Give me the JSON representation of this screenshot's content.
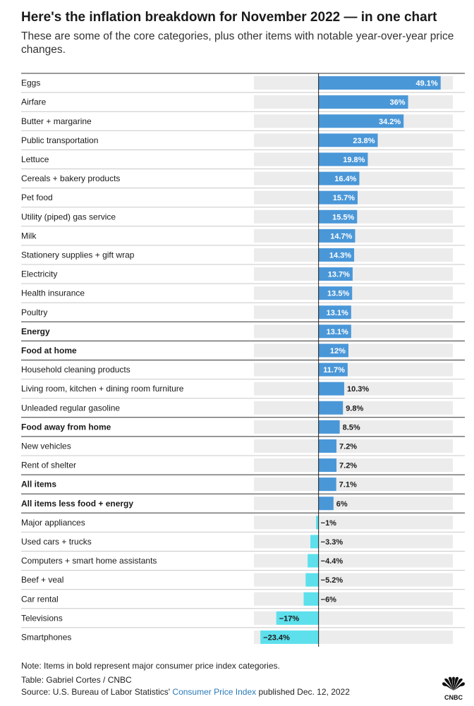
{
  "header": {
    "title": "Here's the inflation breakdown for November 2022 — in one chart",
    "subtitle": "These are some of the core categories, plus other items with notable year-over-year price changes."
  },
  "colors": {
    "positive": "#4a97d8",
    "negative": "#5de0ec",
    "track": "#ececec",
    "axis": "#1a1a1a",
    "separator": "#c8c8c8",
    "separator_bold": "#333333"
  },
  "chart_data": {
    "type": "bar",
    "orientation": "horizontal",
    "xlim": [
      -26,
      54
    ],
    "unit": "%",
    "categories": [
      "Eggs",
      "Airfare",
      "Butter + margarine",
      "Public transportation",
      "Lettuce",
      "Cereals + bakery products",
      "Pet food",
      "Utility (piped) gas service",
      "Milk",
      "Stationery supplies + gift wrap",
      "Electricity",
      "Health insurance",
      "Poultry",
      "Energy",
      "Food at home",
      "Household cleaning products",
      "Living room, kitchen + dining room furniture",
      "Unleaded regular gasoline",
      "Food away from home",
      "New vehicles",
      "Rent of shelter",
      "All items",
      "All items less food + energy",
      "Major appliances",
      "Used cars + trucks",
      "Computers + smart home assistants",
      "Beef + veal",
      "Car rental",
      "Televisions",
      "Smartphones"
    ],
    "values": [
      49.1,
      36,
      34.2,
      23.8,
      19.8,
      16.4,
      15.7,
      15.5,
      14.7,
      14.3,
      13.7,
      13.5,
      13.1,
      13.1,
      12,
      11.7,
      10.3,
      9.8,
      8.5,
      7.2,
      7.2,
      7.1,
      6,
      -1,
      -3.3,
      -4.4,
      -5.2,
      -6,
      -17,
      -23.4
    ],
    "labels": [
      "49.1%",
      "36%",
      "34.2%",
      "23.8%",
      "19.8%",
      "16.4%",
      "15.7%",
      "15.5%",
      "14.7%",
      "14.3%",
      "13.7%",
      "13.5%",
      "13.1%",
      "13.1%",
      "12%",
      "11.7%",
      "10.3%",
      "9.8%",
      "8.5%",
      "7.2%",
      "7.2%",
      "7.1%",
      "6%",
      "−1%",
      "−3.3%",
      "−4.4%",
      "−5.2%",
      "−6%",
      "−17%",
      "−23.4%"
    ],
    "bold": [
      "Energy",
      "Food at home",
      "Food away from home",
      "All items",
      "All items less food + energy"
    ]
  },
  "footer": {
    "note": "Note: Items in bold represent major consumer price index categories.",
    "table_credit": "Table: Gabriel Cortes / CNBC",
    "source_prefix": "Source: U.S. Bureau of Labor Statistics'",
    "source_link": "Consumer Price Index",
    "source_suffix": "published Dec. 12, 2022",
    "logo_icon": "cnbc-peacock-logo",
    "logo_text": "CNBC"
  }
}
